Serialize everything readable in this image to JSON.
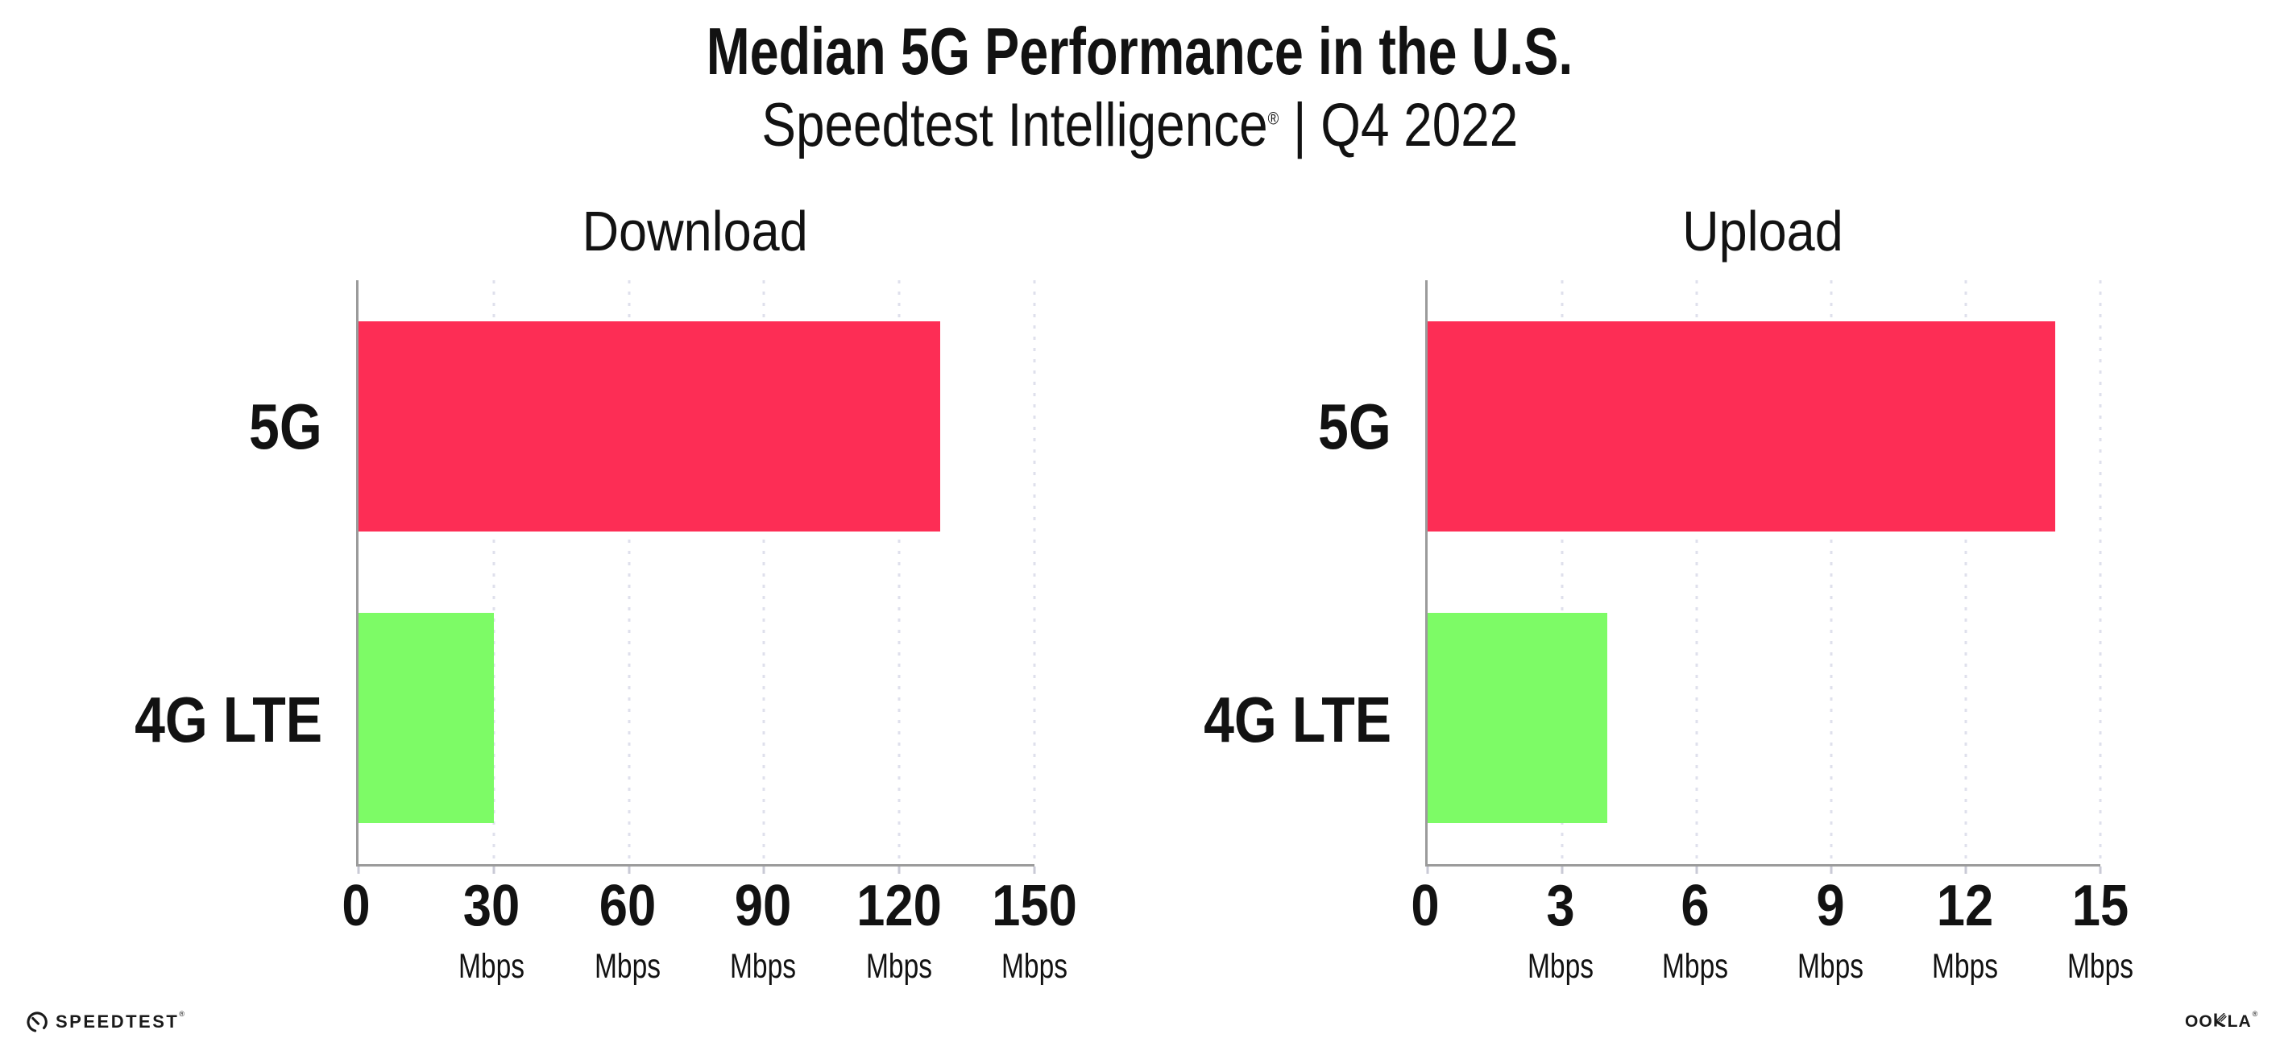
{
  "header": {
    "title": "Median 5G Performance in the U.S.",
    "subtitle_brand": "Speedtest Intelligence",
    "subtitle_reg": "®",
    "subtitle_rest": " | Q4 2022"
  },
  "colors": {
    "bar_5g": "#FD2D55",
    "bar_4g_lte": "#7DFB66",
    "axis": "#9b9b9b",
    "gridline": "#dfe0ec",
    "text": "#121212"
  },
  "chart_data": [
    {
      "type": "bar",
      "orientation": "horizontal",
      "title": "Download",
      "categories": [
        "5G",
        "4G LTE"
      ],
      "values": [
        129,
        30
      ],
      "unit": "Mbps",
      "xlim": [
        0,
        150
      ],
      "x_ticks": [
        0,
        30,
        60,
        90,
        120,
        150
      ],
      "bar_colors": [
        "#FD2D55",
        "#7DFB66"
      ],
      "grid": "dotted-vertical",
      "legend": "none"
    },
    {
      "type": "bar",
      "orientation": "horizontal",
      "title": "Upload",
      "categories": [
        "5G",
        "4G LTE"
      ],
      "values": [
        14,
        4
      ],
      "unit": "Mbps",
      "xlim": [
        0,
        15
      ],
      "x_ticks": [
        0,
        3,
        6,
        9,
        12,
        15
      ],
      "bar_colors": [
        "#FD2D55",
        "#7DFB66"
      ],
      "grid": "dotted-vertical",
      "legend": "none"
    }
  ],
  "footer": {
    "speedtest_label": "SPEEDTEST",
    "speedtest_reg": "®",
    "ookla_left": "OO",
    "ookla_right": "LA",
    "ookla_reg": "®"
  }
}
